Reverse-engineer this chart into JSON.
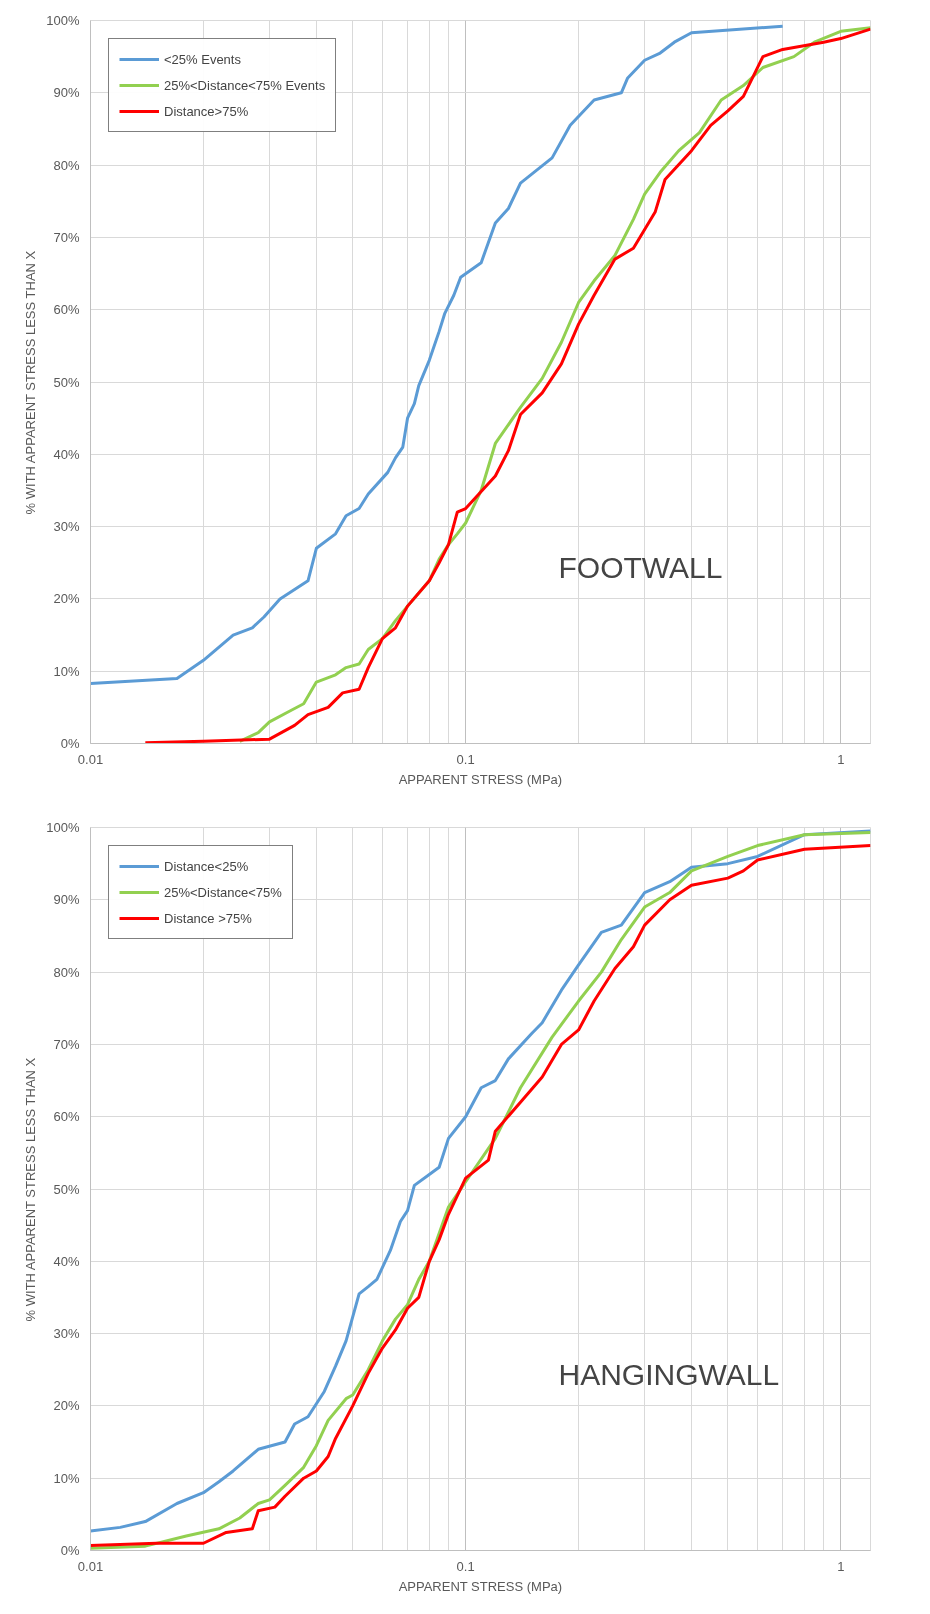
{
  "chart_data": [
    {
      "type": "line",
      "xlabel": "APPARENT STRESS (MPa)",
      "ylabel": "% WITH APPARENT STRESS LESS THAN X",
      "annotations": [
        "FOOTWALL"
      ],
      "log": "x",
      "grid": true,
      "legend": "top left",
      "xlim": [
        0.01,
        1.2
      ],
      "ylim": [
        0,
        100
      ],
      "xticks": [
        0.01,
        0.1,
        1
      ],
      "yticks": [
        {
          "value": 0,
          "label": "0%"
        },
        {
          "value": 10,
          "label": "10%"
        },
        {
          "value": 20,
          "label": "20%"
        },
        {
          "value": 30,
          "label": "30%"
        },
        {
          "value": 40,
          "label": "40%"
        },
        {
          "value": 50,
          "label": "50%"
        },
        {
          "value": 60,
          "label": "60%"
        },
        {
          "value": 70,
          "label": "70%"
        },
        {
          "value": 80,
          "label": "80%"
        },
        {
          "value": 90,
          "label": "90%"
        },
        {
          "value": 100,
          "label": "100%"
        }
      ],
      "series": [
        {
          "name": "<25% Events",
          "color": "#5b9bd5",
          "x": [
            0.01,
            0.017,
            0.02,
            0.024,
            0.027,
            0.029,
            0.032,
            0.038,
            0.04,
            0.045,
            0.048,
            0.052,
            0.055,
            0.062,
            0.065,
            0.068,
            0.07,
            0.073,
            0.075,
            0.08,
            0.085,
            0.088,
            0.093,
            0.097,
            0.11,
            0.12,
            0.13,
            0.14,
            0.17,
            0.19,
            0.22,
            0.26,
            0.27,
            0.3,
            0.33,
            0.36,
            0.4,
            0.7
          ],
          "values": [
            8.3,
            9,
            11.5,
            15,
            16,
            17.5,
            20,
            22.5,
            27,
            29,
            31.5,
            32.5,
            34.5,
            37.5,
            39.5,
            41,
            45,
            47,
            49.5,
            53,
            57,
            59.5,
            62,
            64.5,
            66.5,
            72,
            74,
            77.5,
            81,
            85.5,
            89,
            90,
            92,
            94.5,
            95.5,
            97,
            98.3,
            99.2
          ]
        },
        {
          "name": "25%<Distance<75% Events",
          "color": "#92d050",
          "x": [
            0.025,
            0.028,
            0.03,
            0.034,
            0.037,
            0.04,
            0.045,
            0.048,
            0.052,
            0.055,
            0.06,
            0.065,
            0.07,
            0.08,
            0.085,
            0.09,
            0.095,
            0.1,
            0.11,
            0.12,
            0.14,
            0.16,
            0.18,
            0.2,
            0.22,
            0.25,
            0.28,
            0.3,
            0.33,
            0.37,
            0.42,
            0.48,
            0.55,
            0.62,
            0.75,
            0.85,
            1.0,
            1.2
          ],
          "values": [
            0.3,
            1.5,
            3,
            4.5,
            5.5,
            8.5,
            9.5,
            10.5,
            11,
            13,
            14.5,
            17,
            19,
            22.5,
            25.5,
            27.5,
            29,
            30.5,
            35,
            41.5,
            46.5,
            50.5,
            55.5,
            61,
            64,
            67.5,
            72.5,
            76,
            79,
            82,
            84.5,
            89,
            91,
            93.5,
            95,
            97,
            98.5,
            99
          ]
        },
        {
          "name": "Distance>75%",
          "color": "#ff0000",
          "x": [
            0.014,
            0.02,
            0.03,
            0.035,
            0.038,
            0.043,
            0.047,
            0.052,
            0.055,
            0.06,
            0.065,
            0.07,
            0.08,
            0.085,
            0.09,
            0.095,
            0.1,
            0.12,
            0.13,
            0.14,
            0.16,
            0.18,
            0.2,
            0.22,
            0.25,
            0.28,
            0.32,
            0.34,
            0.4,
            0.45,
            0.5,
            0.55,
            0.62,
            0.7,
            0.9,
            1.0,
            1.2
          ],
          "values": [
            0.1,
            0.3,
            0.6,
            2.5,
            4,
            5,
            7,
            7.5,
            10.5,
            14.5,
            16,
            19,
            22.5,
            25,
            27.5,
            32,
            32.5,
            37,
            40.5,
            45.5,
            48.5,
            52.5,
            58,
            62,
            67,
            68.5,
            73.5,
            78,
            82,
            85.5,
            87.5,
            89.5,
            95,
            96,
            97,
            97.5,
            98.8
          ]
        }
      ]
    },
    {
      "type": "line",
      "xlabel": "APPARENT STRESS (MPa)",
      "ylabel": "% WITH APPARENT STRESS LESS THAN X",
      "annotations": [
        "HANGINGWALL"
      ],
      "log": "x",
      "grid": true,
      "legend": "top left",
      "xlim": [
        0.01,
        1.2
      ],
      "ylim": [
        0,
        100
      ],
      "xticks": [
        0.01,
        0.1,
        1
      ],
      "yticks": [
        {
          "value": 0,
          "label": "0%"
        },
        {
          "value": 10,
          "label": "10%"
        },
        {
          "value": 20,
          "label": "20%"
        },
        {
          "value": 30,
          "label": "30%"
        },
        {
          "value": 40,
          "label": "40%"
        },
        {
          "value": 50,
          "label": "50%"
        },
        {
          "value": 60,
          "label": "60%"
        },
        {
          "value": 70,
          "label": "70%"
        },
        {
          "value": 80,
          "label": "80%"
        },
        {
          "value": 90,
          "label": "90%"
        },
        {
          "value": 100,
          "label": "100%"
        }
      ],
      "series": [
        {
          "name": "Distance<25%",
          "color": "#5b9bd5",
          "x": [
            0.01,
            0.012,
            0.014,
            0.017,
            0.02,
            0.022,
            0.024,
            0.028,
            0.033,
            0.035,
            0.038,
            0.042,
            0.045,
            0.048,
            0.052,
            0.055,
            0.058,
            0.063,
            0.067,
            0.07,
            0.073,
            0.08,
            0.085,
            0.09,
            0.1,
            0.11,
            0.12,
            0.13,
            0.15,
            0.16,
            0.18,
            0.2,
            0.23,
            0.26,
            0.3,
            0.35,
            0.4,
            0.5,
            0.6,
            0.8,
            1.2
          ],
          "values": [
            2.7,
            3.2,
            4,
            6.5,
            8,
            9.5,
            11,
            14,
            15,
            17.5,
            18.5,
            22,
            25.5,
            29,
            35.5,
            36.5,
            37.5,
            41.5,
            45.5,
            47,
            50.5,
            52,
            53,
            57,
            60,
            64,
            65,
            68,
            71.5,
            73,
            77.5,
            81,
            85.5,
            86.5,
            91,
            92.5,
            94.5,
            95,
            96,
            99,
            99.5
          ]
        },
        {
          "name": "25%<Distance<75%",
          "color": "#92d050",
          "x": [
            0.01,
            0.014,
            0.018,
            0.022,
            0.025,
            0.028,
            0.03,
            0.033,
            0.037,
            0.04,
            0.043,
            0.048,
            0.05,
            0.055,
            0.06,
            0.065,
            0.07,
            0.075,
            0.08,
            0.09,
            0.1,
            0.12,
            0.14,
            0.17,
            0.2,
            0.23,
            0.26,
            0.3,
            0.35,
            0.4,
            0.5,
            0.6,
            0.8,
            1.2
          ],
          "values": [
            0.3,
            0.6,
            2,
            3,
            4.5,
            6.5,
            7,
            9,
            11.5,
            14.5,
            18,
            21,
            21.5,
            25,
            29,
            32,
            34,
            37.5,
            40,
            47.5,
            51,
            57,
            64,
            71,
            76,
            80,
            84.5,
            89,
            91,
            94,
            96,
            97.5,
            99,
            99.3
          ]
        },
        {
          "name": "Distance >75%",
          "color": "#ff0000",
          "x": [
            0.01,
            0.015,
            0.02,
            0.023,
            0.027,
            0.028,
            0.031,
            0.033,
            0.037,
            0.04,
            0.043,
            0.045,
            0.05,
            0.055,
            0.06,
            0.065,
            0.07,
            0.075,
            0.08,
            0.085,
            0.09,
            0.1,
            0.115,
            0.12,
            0.14,
            0.16,
            0.18,
            0.2,
            0.22,
            0.25,
            0.28,
            0.3,
            0.35,
            0.4,
            0.5,
            0.55,
            0.6,
            0.8,
            1.2
          ],
          "values": [
            0.7,
            1,
            1,
            2.5,
            3,
            5.5,
            6,
            7.5,
            10,
            11,
            13,
            15.5,
            20,
            24.5,
            28,
            30.5,
            33.5,
            35,
            40,
            43,
            46.5,
            51.5,
            54,
            58,
            62,
            65.5,
            70,
            72,
            76,
            80.5,
            83.5,
            86.5,
            90,
            92,
            93,
            94,
            95.5,
            97,
            97.5
          ]
        }
      ]
    }
  ]
}
